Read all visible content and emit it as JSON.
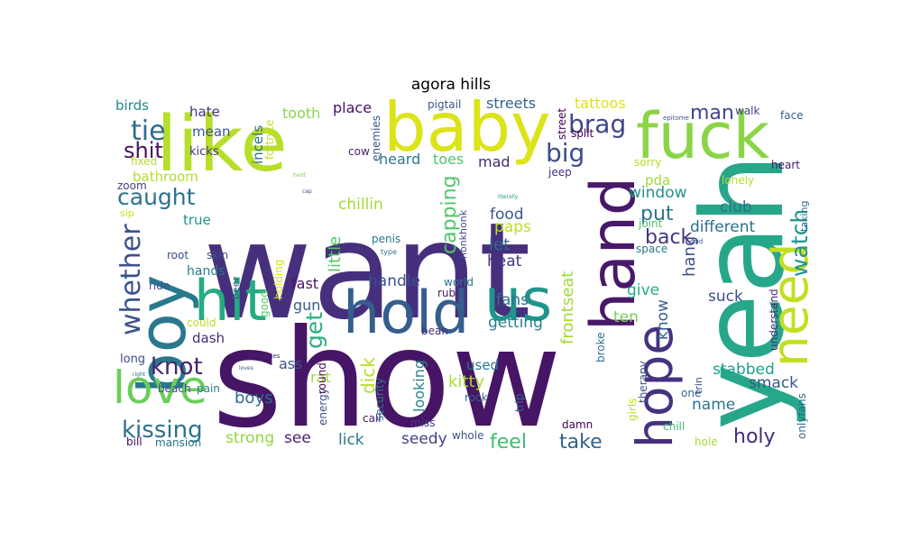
{
  "title": "agora hills",
  "words": [
    {
      "text": "want",
      "color": "#46307d",
      "rotate": false
    },
    {
      "text": "show",
      "color": "#471565",
      "rotate": false
    },
    {
      "text": "yeah",
      "color": "#27a78a",
      "rotate": true
    },
    {
      "text": "like",
      "color": "#b6de2b",
      "rotate": false
    },
    {
      "text": "baby",
      "color": "#dce318",
      "rotate": false
    },
    {
      "text": "fuck",
      "color": "#8ad547",
      "rotate": false
    },
    {
      "text": "boy",
      "color": "#2a788e",
      "rotate": true
    },
    {
      "text": "hand",
      "color": "#48186a",
      "rotate": true
    },
    {
      "text": "hold",
      "color": "#355e8d",
      "rotate": false
    },
    {
      "text": "us",
      "color": "#1f958b",
      "rotate": false
    },
    {
      "text": "hit",
      "color": "#25ab82",
      "rotate": false
    },
    {
      "text": "need",
      "color": "#c2df23",
      "rotate": true
    },
    {
      "text": "hope",
      "color": "#46327e",
      "rotate": true
    },
    {
      "text": "love",
      "color": "#6ccd5a",
      "rotate": false
    },
    {
      "text": "whether",
      "color": "#3b528b",
      "rotate": true
    },
    {
      "text": "tie",
      "color": "#2f6c8e",
      "rotate": false
    },
    {
      "text": "shit",
      "color": "#471164",
      "rotate": false
    },
    {
      "text": "caught",
      "color": "#2c728e",
      "rotate": false
    },
    {
      "text": "kissing",
      "color": "#2d718e",
      "rotate": false
    },
    {
      "text": "knot",
      "color": "#482173",
      "rotate": false
    },
    {
      "text": "brag",
      "color": "#3f4788",
      "rotate": false
    },
    {
      "text": "big",
      "color": "#3e4c8a",
      "rotate": false
    },
    {
      "text": "watch",
      "color": "#1f968b",
      "rotate": true
    },
    {
      "text": "man",
      "color": "#404588",
      "rotate": false
    },
    {
      "text": "put",
      "color": "#2b748e",
      "rotate": false
    },
    {
      "text": "back",
      "color": "#453581",
      "rotate": false
    },
    {
      "text": "capping",
      "color": "#54c568",
      "rotate": true
    },
    {
      "text": "get",
      "color": "#2ab07f",
      "rotate": true
    },
    {
      "text": "feel",
      "color": "#3fbc73",
      "rotate": false
    },
    {
      "text": "take",
      "color": "#33638d",
      "rotate": false
    },
    {
      "text": "holy",
      "color": "#472d7b",
      "rotate": false
    },
    {
      "text": "kitty",
      "color": "#a8db34",
      "rotate": false
    },
    {
      "text": "dick",
      "color": "#b5de2b",
      "rotate": true
    },
    {
      "text": "little",
      "color": "#56c667",
      "rotate": true
    },
    {
      "text": "boys",
      "color": "#2f6b8e",
      "rotate": false
    },
    {
      "text": "strong",
      "color": "#95d840",
      "rotate": false
    },
    {
      "text": "see",
      "color": "#482374",
      "rotate": false
    },
    {
      "text": "lick",
      "color": "#2a788e",
      "rotate": false
    },
    {
      "text": "seedy",
      "color": "#424186",
      "rotate": false
    },
    {
      "text": "hang",
      "color": "#3c4f8a",
      "rotate": true
    },
    {
      "text": "know",
      "color": "#355f8d",
      "rotate": true
    },
    {
      "text": "window",
      "color": "#21918c",
      "rotate": false
    },
    {
      "text": "club",
      "color": "#2e6e8e",
      "rotate": false
    },
    {
      "text": "different",
      "color": "#2d708e",
      "rotate": false
    },
    {
      "text": "suck",
      "color": "#3b518b",
      "rotate": false
    },
    {
      "text": "stabbed",
      "color": "#1fa088",
      "rotate": false
    },
    {
      "text": "smack",
      "color": "#38598c",
      "rotate": false
    },
    {
      "text": "name",
      "color": "#2c738e",
      "rotate": false
    },
    {
      "text": "give",
      "color": "#27ad81",
      "rotate": false
    },
    {
      "text": "ten",
      "color": "#75d054",
      "rotate": false
    },
    {
      "text": "frontseat",
      "color": "#a2da37",
      "rotate": true
    },
    {
      "text": "getting",
      "color": "#25848e",
      "rotate": false
    },
    {
      "text": "fans",
      "color": "#2d708e",
      "rotate": false
    },
    {
      "text": "heat",
      "color": "#46337f",
      "rotate": false
    },
    {
      "text": "let",
      "color": "#31678e",
      "rotate": false
    },
    {
      "text": "paps",
      "color": "#c0df25",
      "rotate": false
    },
    {
      "text": "food",
      "color": "#38588c",
      "rotate": false
    },
    {
      "text": "chillin",
      "color": "#a2da37",
      "rotate": false
    },
    {
      "text": "handle",
      "color": "#3a538b",
      "rotate": false
    },
    {
      "text": "heard",
      "color": "#2a778e",
      "rotate": false
    },
    {
      "text": "toes",
      "color": "#50c46a",
      "rotate": false
    },
    {
      "text": "mad",
      "color": "#482878",
      "rotate": false
    },
    {
      "text": "streets",
      "color": "#32658e",
      "rotate": false
    },
    {
      "text": "tattoos",
      "color": "#dde318",
      "rotate": false
    },
    {
      "text": "tooth",
      "color": "#8bd646",
      "rotate": false
    },
    {
      "text": "place",
      "color": "#471063",
      "rotate": false
    },
    {
      "text": "hate",
      "color": "#46307e",
      "rotate": false
    },
    {
      "text": "birds",
      "color": "#24878e",
      "rotate": false
    },
    {
      "text": "mean",
      "color": "#3a548c",
      "rotate": false
    },
    {
      "text": "kicks",
      "color": "#46327e",
      "rotate": false
    },
    {
      "text": "fixed",
      "color": "#b2dd2d",
      "rotate": false
    },
    {
      "text": "bathroom",
      "color": "#b5de2b",
      "rotate": false
    },
    {
      "text": "zoom",
      "color": "#424086",
      "rotate": false
    },
    {
      "text": "sip",
      "color": "#d2e21b",
      "rotate": false
    },
    {
      "text": "true",
      "color": "#20928c",
      "rotate": false
    },
    {
      "text": "root",
      "color": "#3c4f8a",
      "rotate": false
    },
    {
      "text": "skin",
      "color": "#39568c",
      "rotate": false
    },
    {
      "text": "hands",
      "color": "#29798e",
      "rotate": false
    },
    {
      "text": "ride",
      "color": "#3b518b",
      "rotate": false
    },
    {
      "text": "dash",
      "color": "#482979",
      "rotate": false
    },
    {
      "text": "could",
      "color": "#bade28",
      "rotate": false
    },
    {
      "text": "long",
      "color": "#404688",
      "rotate": false
    },
    {
      "text": "beach",
      "color": "#3b528b",
      "rotate": false
    },
    {
      "text": "pain",
      "color": "#26818e",
      "rotate": false
    },
    {
      "text": "bill",
      "color": "#46085c",
      "rotate": false
    },
    {
      "text": "mansion",
      "color": "#2c728e",
      "rotate": false
    },
    {
      "text": "incels",
      "color": "#2c718e",
      "rotate": true
    },
    {
      "text": "fortnite",
      "color": "#c5e021",
      "rotate": true
    },
    {
      "text": "holding",
      "color": "#d5e21a",
      "rotate": true
    },
    {
      "text": "beer",
      "color": "#375a8c",
      "rotate": true
    },
    {
      "text": "good",
      "color": "#56c667",
      "rotate": true
    },
    {
      "text": "ass",
      "color": "#3a548c",
      "rotate": false
    },
    {
      "text": "rat",
      "color": "#a0da39",
      "rotate": false
    },
    {
      "text": "gun",
      "color": "#33628d",
      "rotate": false
    },
    {
      "text": "fast",
      "color": "#471365",
      "rotate": false
    },
    {
      "text": "cow",
      "color": "#481d6f",
      "rotate": false
    },
    {
      "text": "enemies",
      "color": "#3b528b",
      "rotate": true
    },
    {
      "text": "penis",
      "color": "#297b8e",
      "rotate": false
    },
    {
      "text": "type",
      "color": "#2d708e",
      "rotate": false
    },
    {
      "text": "honkhonk",
      "color": "#3c4f8a",
      "rotate": true
    },
    {
      "text": "rub",
      "color": "#481d6f",
      "rotate": false
    },
    {
      "text": "world",
      "color": "#2c738e",
      "rotate": false
    },
    {
      "text": "energy",
      "color": "#3c4f8a",
      "rotate": true
    },
    {
      "text": "round",
      "color": "#460b5e",
      "rotate": true
    },
    {
      "text": "security",
      "color": "#29798e",
      "rotate": true
    },
    {
      "text": "philistines",
      "color": "#482475",
      "rotate": false
    },
    {
      "text": "loves",
      "color": "#38598c",
      "rotate": false
    },
    {
      "text": "right",
      "color": "#2d708e",
      "rotate": false
    },
    {
      "text": "call",
      "color": "#48186a",
      "rotate": false
    },
    {
      "text": "miss",
      "color": "#453882",
      "rotate": false
    },
    {
      "text": "whole",
      "color": "#3a548c",
      "rotate": false
    },
    {
      "text": "looking",
      "color": "#26818e",
      "rotate": true
    },
    {
      "text": "used",
      "color": "#2a788e",
      "rotate": false
    },
    {
      "text": "bean",
      "color": "#46307e",
      "rotate": false
    },
    {
      "text": "rock",
      "color": "#32648e",
      "rotate": false
    },
    {
      "text": "trip",
      "color": "#2e6e8e",
      "rotate": true
    },
    {
      "text": "damn",
      "color": "#440154",
      "rotate": false
    },
    {
      "text": "pigtail",
      "color": "#3b528b",
      "rotate": false
    },
    {
      "text": "street",
      "color": "#440154",
      "rotate": true
    },
    {
      "text": "split",
      "color": "#440154",
      "rotate": false
    },
    {
      "text": "jeep",
      "color": "#46307e",
      "rotate": false
    },
    {
      "text": "sorry",
      "color": "#b5de2b",
      "rotate": false
    },
    {
      "text": "pda",
      "color": "#a0da39",
      "rotate": false
    },
    {
      "text": "joint",
      "color": "#4ac16d",
      "rotate": false
    },
    {
      "text": "space",
      "color": "#2a788e",
      "rotate": false
    },
    {
      "text": "walk",
      "color": "#414487",
      "rotate": false
    },
    {
      "text": "face",
      "color": "#355f8d",
      "rotate": false
    },
    {
      "text": "heart",
      "color": "#481a6c",
      "rotate": false
    },
    {
      "text": "lonely",
      "color": "#b8de29",
      "rotate": false
    },
    {
      "text": "taking",
      "color": "#2f6b8e",
      "rotate": true
    },
    {
      "text": "said",
      "color": "#3b528b",
      "rotate": false
    },
    {
      "text": "epitome",
      "color": "#3b528b",
      "rotate": false
    },
    {
      "text": "understand",
      "color": "#482878",
      "rotate": true
    },
    {
      "text": "onlyfans",
      "color": "#31688e",
      "rotate": true
    },
    {
      "text": "therapy",
      "color": "#3b528b",
      "rotate": true
    },
    {
      "text": "girls",
      "color": "#bade28",
      "rotate": true
    },
    {
      "text": "broke",
      "color": "#2d708e",
      "rotate": true
    },
    {
      "text": "one",
      "color": "#32658e",
      "rotate": false
    },
    {
      "text": "trin",
      "color": "#3b528b",
      "rotate": true
    },
    {
      "text": "chill",
      "color": "#3fbc73",
      "rotate": false
    },
    {
      "text": "hole",
      "color": "#a8db34",
      "rotate": false
    },
    {
      "text": "hard",
      "color": "#7ad151",
      "rotate": false
    },
    {
      "text": "cap",
      "color": "#3e4c8a",
      "rotate": false
    },
    {
      "text": "literally",
      "color": "#1e9b8a",
      "rotate": false
    }
  ]
}
